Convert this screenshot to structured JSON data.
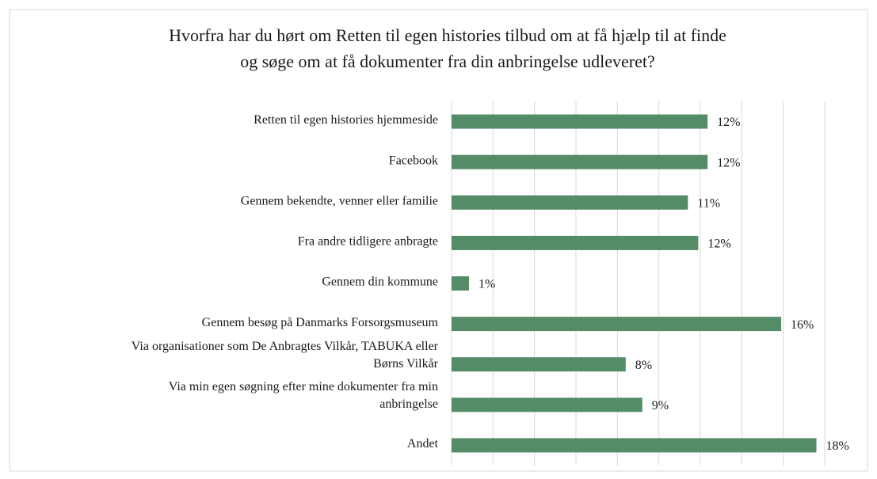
{
  "chart_data": {
    "type": "hbar",
    "title": [
      "Hvorfra har du hørt om Retten til egen histories tilbud om at få hjælp til at finde",
      "og søge om at få dokumenter fra din anbringelse udleveret?"
    ],
    "categories": [
      [
        "Retten til egen histories hjemmeside"
      ],
      [
        "Facebook"
      ],
      [
        "Gennem bekendte, venner eller familie"
      ],
      [
        "Fra andre tidligere anbragte"
      ],
      [
        "Gennem din kommune"
      ],
      [
        "Gennem besøg på Danmarks Forsorgsmuseum"
      ],
      [
        "Via organisationer som De Anbragtes Vilkår, TABUKA eller",
        "Børns Vilkår"
      ],
      [
        "Via min egen søgning efter mine dokumenter fra min",
        "anbringelse"
      ],
      [
        "Andet"
      ]
    ],
    "values": [
      12.35,
      12.35,
      11.4,
      11.9,
      0.84,
      15.9,
      8.4,
      9.2,
      17.6
    ],
    "value_labels": [
      "12%",
      "12%",
      "11%",
      "12%",
      "1%",
      "16%",
      "8%",
      "9%",
      "18%"
    ],
    "color": "#548c68",
    "xlim": [
      0,
      18
    ],
    "xticks": [
      0,
      2,
      4,
      6,
      8,
      10,
      12,
      14,
      16,
      18
    ],
    "grid": true
  }
}
